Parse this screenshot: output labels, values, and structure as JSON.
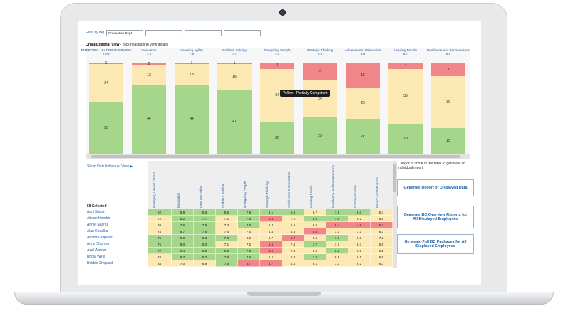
{
  "filter": {
    "label": "Filter by tag",
    "selects": [
      "Production Dept",
      "",
      "",
      ""
    ]
  },
  "org_title_bold": "Organizational View",
  "org_title_rest": " - click headings to view details",
  "colors": {
    "red": "#f0858a",
    "yellow": "#fbe8b2",
    "green": "#a6d68c",
    "link": "#1f5fa8"
  },
  "chart_data": {
    "type": "bar",
    "stacked": true,
    "categories": [
      {
        "label": "EMERGING LEADER OVERVIEW",
        "score": "75%"
      },
      {
        "label": "Innovation",
        "score": "7.9"
      },
      {
        "label": "Learning Agility",
        "score": "7.9"
      },
      {
        "label": "Problem Solving",
        "score": "7.7"
      },
      {
        "label": "Energizing People",
        "score": "7.1"
      },
      {
        "label": "Strategic Thinking",
        "score": "6.9"
      },
      {
        "label": "Achievement Orientation",
        "score": "6.9"
      },
      {
        "label": "Leading People",
        "score": "6.7"
      },
      {
        "label": "Resilience and Perseverance",
        "score": "6.8"
      }
    ],
    "series": [
      {
        "color": "red",
        "values": [
          1,
          2,
          1,
          1,
          4,
          11,
          16,
          4,
          8
        ]
      },
      {
        "color": "yellow",
        "values": [
          24,
          12,
          13,
          16,
          34,
          24,
          20,
          35,
          30
        ]
      },
      {
        "color": "green",
        "values": [
          33,
          44,
          44,
          41,
          20,
          23,
          22,
          19,
          15
        ]
      }
    ],
    "tooltip": "Yellow - Partially Competent"
  },
  "show_individual": "Show Only Individual View ▶",
  "selected_count": "58 Selected",
  "table": {
    "columns": [
      "Emerging Leader Total %",
      "Innovation",
      "Learning Agility",
      "Problem Solving",
      "Energizing People",
      "Strategic Thinking",
      "Achievement Orientation",
      "Leading People",
      "Resilience and Perseverance",
      "Communication",
      "Impact and Influence"
    ],
    "rows": [
      {
        "name": "Aarti Saurzi",
        "values": [
          "82",
          "8.8",
          "8.8",
          "8.5",
          "7.8",
          "8.1",
          "8.6",
          "6.7",
          "7.5",
          "8.0",
          "6.3"
        ],
        "colors": [
          "green",
          "green",
          "green",
          "green",
          "green",
          "green",
          "green",
          "yellow",
          "green",
          "green",
          "yellow"
        ]
      },
      {
        "name": "Abram Hendrix",
        "values": [
          "72",
          "8.2",
          "7.7",
          "7.1",
          "7.6",
          "5.3",
          "7.2",
          "8.5",
          "7.6",
          "6.2",
          "6.8"
        ],
        "colors": [
          "yellow",
          "green",
          "green",
          "yellow",
          "green",
          "red",
          "yellow",
          "green",
          "green",
          "yellow",
          "yellow"
        ]
      },
      {
        "name": "Annie Suarez",
        "values": [
          "69",
          "7.6",
          "7.9",
          "7.3",
          "7.5",
          "6.4",
          "6.6",
          "6.6",
          "5.4",
          "4.8",
          "5.2"
        ],
        "colors": [
          "yellow",
          "green",
          "green",
          "yellow",
          "green",
          "yellow",
          "yellow",
          "yellow",
          "red",
          "red",
          "red"
        ]
      },
      {
        "name": "Alan Kosalka",
        "values": [
          "74",
          "8.7",
          "7.8",
          "7.4",
          "7.4",
          "6.4",
          "6.3",
          "5.8",
          "7.1",
          "7.1",
          "6.3"
        ],
        "colors": [
          "yellow",
          "green",
          "green",
          "yellow",
          "yellow",
          "yellow",
          "yellow",
          "red",
          "yellow",
          "yellow",
          "yellow"
        ]
      },
      {
        "name": "Anand Gurpreet",
        "values": [
          "75",
          "8.6",
          "8.6",
          "7.8",
          "6.9",
          "6.7",
          "5.7",
          "6.6",
          "7.8",
          "6.6",
          "7.2"
        ],
        "colors": [
          "green",
          "green",
          "green",
          "green",
          "yellow",
          "yellow",
          "red",
          "yellow",
          "green",
          "yellow",
          "yellow"
        ]
      },
      {
        "name": "Anna Shannon",
        "values": [
          "75",
          "8.0",
          "8.0",
          "7.1",
          "7.2",
          "5.5",
          "7.4",
          "7.7",
          "7.1",
          "6.7",
          "6.5"
        ],
        "colors": [
          "green",
          "green",
          "green",
          "yellow",
          "yellow",
          "red",
          "yellow",
          "green",
          "yellow",
          "yellow",
          "yellow"
        ]
      },
      {
        "name": "Axel Warner",
        "values": [
          "77",
          "8.4",
          "8.2",
          "8.2",
          "7.8",
          "4.9",
          "7.3",
          "6.6",
          "8.2",
          "6.9",
          "6.5"
        ],
        "colors": [
          "green",
          "green",
          "green",
          "green",
          "green",
          "red",
          "yellow",
          "yellow",
          "green",
          "yellow",
          "yellow"
        ]
      },
      {
        "name": "Bhoja Wells",
        "values": [
          "74",
          "8.7",
          "8.0",
          "7.8",
          "7.6",
          "6.2",
          "6.8",
          "7.8",
          "6.6",
          "6.5",
          "6.6"
        ],
        "colors": [
          "yellow",
          "green",
          "green",
          "green",
          "green",
          "yellow",
          "yellow",
          "green",
          "yellow",
          "yellow",
          "yellow"
        ]
      },
      {
        "name": "Bobbie Shepard",
        "values": [
          "64",
          "7.0",
          "6.9",
          "7.8",
          "5.7",
          "5.7",
          "6.4",
          "6.1",
          "7.3",
          "6.2",
          "6.3"
        ],
        "colors": [
          "yellow",
          "yellow",
          "yellow",
          "green",
          "red",
          "red",
          "yellow",
          "yellow",
          "yellow",
          "yellow",
          "yellow"
        ]
      }
    ]
  },
  "hint": "Click on a score in the table to generate an individual report",
  "buttons": {
    "report": "Generate Report of Displayed Data",
    "overview": "Generate BC Overview Reports for All Displayed Employees",
    "packages": "Generate Full BC Packages for All Displayed Employees"
  }
}
